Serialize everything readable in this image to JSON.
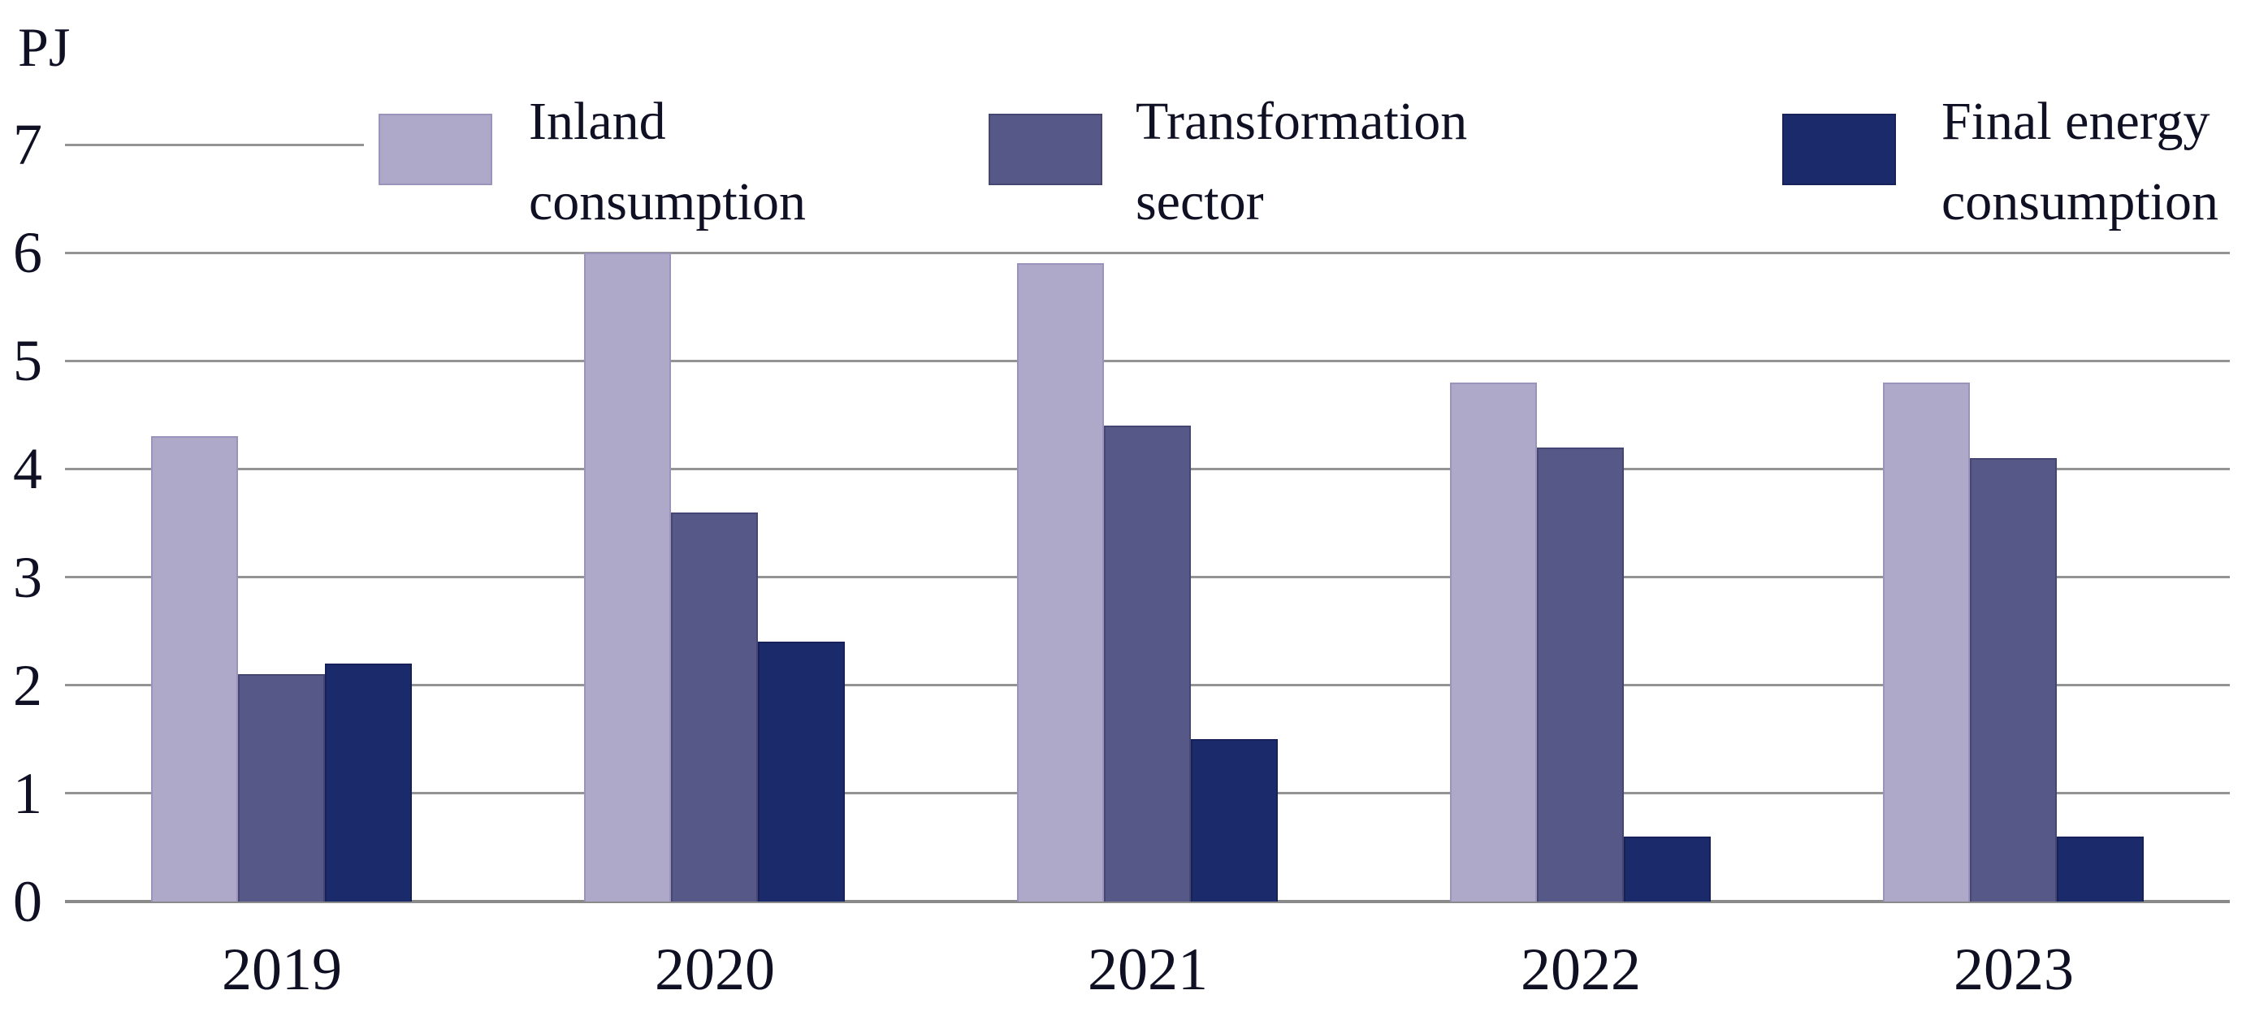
{
  "page": {
    "unit_label": "PJ"
  },
  "chart_data": {
    "type": "bar",
    "title": "",
    "xlabel": "",
    "ylabel": "PJ",
    "ylim": [
      0,
      7
    ],
    "yticks": [
      0,
      1,
      2,
      3,
      4,
      5,
      6,
      7
    ],
    "grid": true,
    "legend_position": "top",
    "categories": [
      "2019",
      "2020",
      "2021",
      "2022",
      "2023"
    ],
    "series": [
      {
        "name": "Inland consumption",
        "legend_lines": [
          "Inland",
          "consumption"
        ],
        "color": "#aea8c9",
        "border_color": "#9a93bc",
        "values": [
          4.3,
          6.0,
          5.9,
          4.8,
          4.8
        ]
      },
      {
        "name": "Transformation sector",
        "legend_lines": [
          "Transformation",
          "sector"
        ],
        "color": "#565887",
        "border_color": "#454672",
        "values": [
          2.1,
          3.6,
          4.4,
          4.2,
          4.1
        ]
      },
      {
        "name": "Final energy consumption",
        "legend_lines": [
          "Final energy",
          "consumption"
        ],
        "color": "#1b2a6b",
        "border_color": "#152158",
        "values": [
          2.2,
          2.4,
          1.5,
          0.6,
          0.6
        ]
      }
    ]
  }
}
